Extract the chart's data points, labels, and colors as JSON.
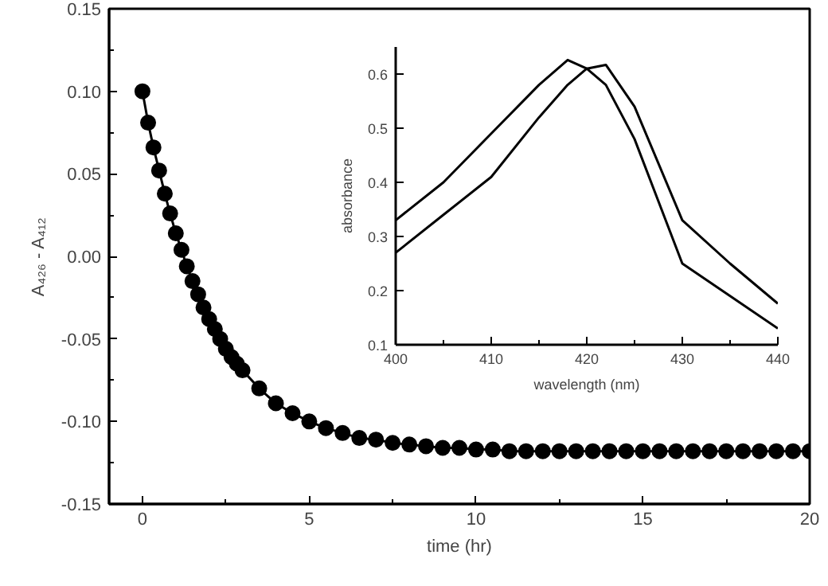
{
  "chart_data": [
    {
      "type": "line",
      "xlabel": "time (hr)",
      "ylabel": "A₄₂₆ - A₄₁₂",
      "marker": "circle",
      "grid": false,
      "x": [
        0,
        0.17,
        0.33,
        0.5,
        0.67,
        0.83,
        1.0,
        1.17,
        1.33,
        1.5,
        1.67,
        1.83,
        2.0,
        2.17,
        2.33,
        2.5,
        2.67,
        2.83,
        3.0,
        3.5,
        4.0,
        4.5,
        5.0,
        5.5,
        6.0,
        6.5,
        7.0,
        7.5,
        8.0,
        8.5,
        9.0,
        9.5,
        10.0,
        10.5,
        11.0,
        11.5,
        12.0,
        12.5,
        13.0,
        13.5,
        14.0,
        14.5,
        15.0,
        15.5,
        16.0,
        16.5,
        17.0,
        17.5,
        18.0,
        18.5,
        19.0,
        19.5,
        20.0
      ],
      "series": [
        {
          "color": "#000000",
          "values": [
            0.1,
            0.081,
            0.066,
            0.052,
            0.038,
            0.026,
            0.014,
            0.004,
            -0.006,
            -0.015,
            -0.023,
            -0.031,
            -0.038,
            -0.044,
            -0.05,
            -0.056,
            -0.061,
            -0.065,
            -0.069,
            -0.08,
            -0.089,
            -0.095,
            -0.1,
            -0.104,
            -0.107,
            -0.11,
            -0.111,
            -0.113,
            -0.114,
            -0.115,
            -0.116,
            -0.116,
            -0.117,
            -0.117,
            -0.118,
            -0.118,
            -0.118,
            -0.118,
            -0.118,
            -0.118,
            -0.118,
            -0.118,
            -0.118,
            -0.118,
            -0.118,
            -0.118,
            -0.118,
            -0.118,
            -0.118,
            -0.118,
            -0.118,
            -0.118,
            -0.118
          ]
        }
      ],
      "xlim": [
        -1,
        20
      ],
      "xticks": [
        0,
        {
          "value": 2.5,
          "label": null
        },
        5,
        {
          "value": 7.5,
          "label": null
        },
        10,
        {
          "value": 12.5,
          "label": null
        },
        15,
        {
          "value": 17.5,
          "label": null
        },
        20
      ],
      "ylim": [
        -0.15,
        0.15
      ],
      "yticks": [
        {
          "value": -0.15,
          "label": "-0.15"
        },
        {
          "value": -0.125,
          "label": null
        },
        {
          "value": -0.1,
          "label": "-0.10"
        },
        {
          "value": -0.075,
          "label": null
        },
        {
          "value": -0.05,
          "label": "-0.05"
        },
        {
          "value": -0.025,
          "label": null
        },
        {
          "value": 0,
          "label": "0.00"
        },
        {
          "value": 0.025,
          "label": null
        },
        {
          "value": 0.05,
          "label": "0.05"
        },
        {
          "value": 0.075,
          "label": null
        },
        {
          "value": 0.1,
          "label": "0.10"
        },
        {
          "value": 0.125,
          "label": null
        },
        {
          "value": 0.15,
          "label": "0.15"
        }
      ]
    },
    {
      "type": "line",
      "xlabel": "wavelength (nm)",
      "ylabel": "absorbance",
      "marker": "none",
      "grid": false,
      "x": [
        400,
        405,
        410,
        415,
        418,
        420,
        422,
        425,
        430,
        435,
        440
      ],
      "series": [
        {
          "color": "#000000",
          "values": [
            0.27,
            0.34,
            0.41,
            0.52,
            0.58,
            0.61,
            0.617,
            0.54,
            0.33,
            0.25,
            0.176
          ]
        },
        {
          "color": "#000000",
          "values": [
            0.33,
            0.4,
            0.49,
            0.58,
            0.626,
            0.61,
            0.58,
            0.48,
            0.25,
            0.19,
            0.13
          ]
        }
      ],
      "xlim": [
        400,
        440
      ],
      "xticks": [
        400,
        {
          "value": 405,
          "label": null
        },
        410,
        {
          "value": 415,
          "label": null
        },
        420,
        {
          "value": 425,
          "label": null
        },
        430,
        {
          "value": 435,
          "label": null
        },
        440
      ],
      "ylim": [
        0.1,
        0.65
      ],
      "yticks": [
        0.1,
        0.2,
        0.3,
        0.4,
        0.5,
        0.6
      ]
    }
  ]
}
